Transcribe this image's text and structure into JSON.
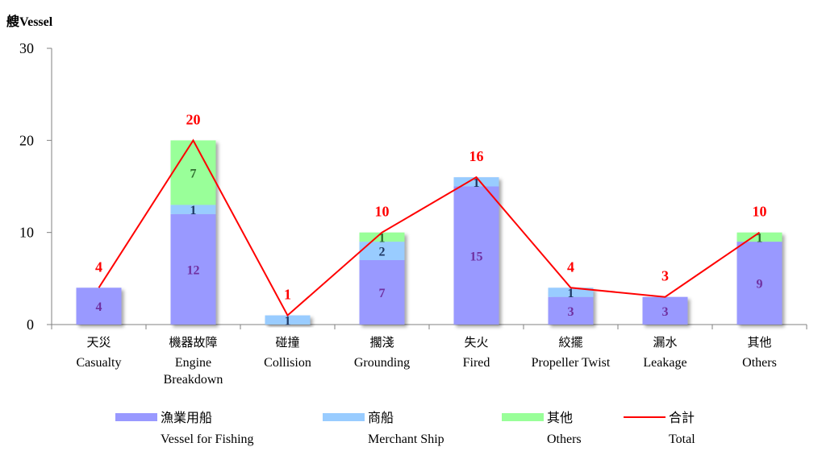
{
  "chart_data": {
    "type": "bar",
    "stacked": true,
    "yaxis_title": "艘Vessel",
    "ylim": [
      0,
      30
    ],
    "yticks": [
      0,
      10,
      20,
      30
    ],
    "grid": false,
    "legend_position": "bottom",
    "categories": [
      {
        "zh": "天災",
        "en": [
          "Casualty"
        ]
      },
      {
        "zh": "機器故障",
        "en": [
          "Engine",
          "Breakdown"
        ]
      },
      {
        "zh": "碰撞",
        "en": [
          "Collision"
        ]
      },
      {
        "zh": "擱淺",
        "en": [
          "Grounding"
        ]
      },
      {
        "zh": "失火",
        "en": [
          "Fired"
        ]
      },
      {
        "zh": "絞擺",
        "en": [
          "Propeller Twist"
        ]
      },
      {
        "zh": "漏水",
        "en": [
          "Leakage"
        ]
      },
      {
        "zh": "其他",
        "en": [
          "Others"
        ]
      }
    ],
    "series": [
      {
        "name_zh": "漁業用船",
        "name_en": "Vessel for Fishing",
        "kind": "bar",
        "color": "#9999ff",
        "label_color": "#7030a0",
        "values": [
          4,
          12,
          0,
          7,
          15,
          3,
          3,
          9
        ]
      },
      {
        "name_zh": "商船",
        "name_en": "Merchant Ship",
        "kind": "bar",
        "color": "#99ccff",
        "label_color": "#1f3864",
        "values": [
          0,
          1,
          1,
          2,
          1,
          1,
          0,
          0
        ]
      },
      {
        "name_zh": "其他",
        "name_en": "Others",
        "kind": "bar",
        "color": "#99ff99",
        "label_color": "#2e6b2e",
        "values": [
          0,
          7,
          0,
          1,
          0,
          0,
          0,
          1
        ]
      },
      {
        "name_zh": "合計",
        "name_en": "Total",
        "kind": "line",
        "color": "#ff0000",
        "label_color": "#ff0000",
        "values": [
          4,
          20,
          1,
          10,
          16,
          4,
          3,
          10
        ]
      }
    ]
  }
}
